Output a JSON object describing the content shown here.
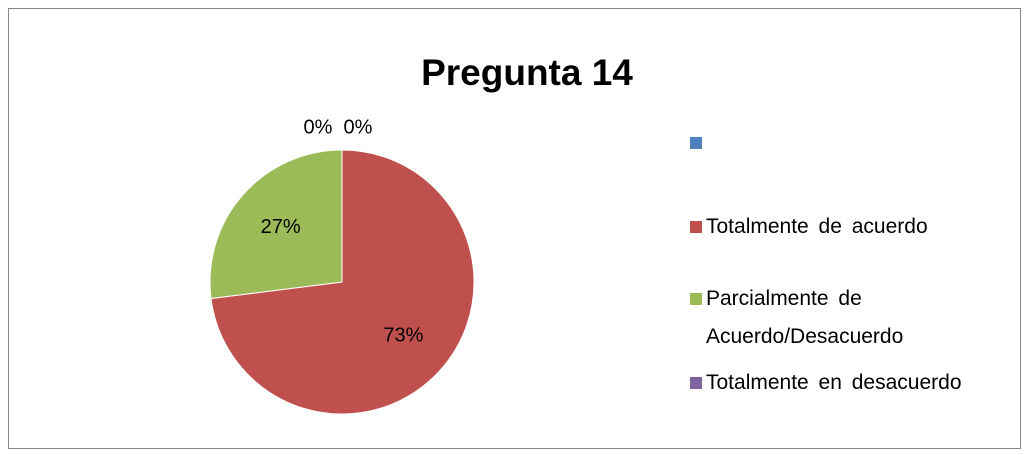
{
  "chart_data": {
    "type": "pie",
    "title": "Pregunta 14",
    "categories": [
      null,
      "Totalmente de acuerdo",
      "Parcialmente de Acuerdo/Desacuerdo",
      "Totalmente en desacuerdo"
    ],
    "values": [
      0,
      73,
      27,
      0
    ],
    "value_labels": [
      "0%",
      "73%",
      "27%",
      "0%"
    ],
    "colors": [
      "#4f81bd",
      "#c0504d",
      "#9bbb59",
      "#8064a2"
    ],
    "legend": "right"
  }
}
